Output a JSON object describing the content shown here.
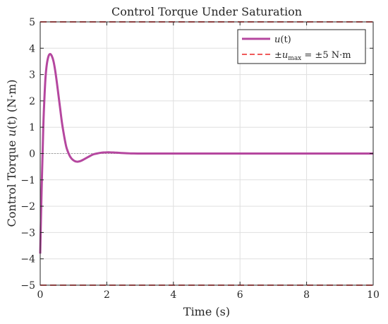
{
  "chart_data": {
    "type": "line",
    "title": "Control Torque Under Saturation",
    "xlabel": "Time (s)",
    "ylabel": {
      "prefix": "Control Torque ",
      "var": "u",
      "args": "(t)",
      "suffix": " (N·m)"
    },
    "xlim": [
      0,
      10
    ],
    "ylim": [
      -5,
      5
    ],
    "xticks": [
      0,
      2,
      4,
      6,
      8,
      10
    ],
    "yticks": [
      -5,
      -4,
      -3,
      -2,
      -1,
      0,
      1,
      2,
      3,
      4,
      5
    ],
    "ytick_labels": [
      "−5",
      "−4",
      "−3",
      "−2",
      "−1",
      "0",
      "1",
      "2",
      "3",
      "4",
      "5"
    ],
    "grid": true,
    "legend_position": "top-right",
    "colors": {
      "signal": "#b5479f",
      "limit": "#f05a5a",
      "zero": "#8c8c8c"
    },
    "series": [
      {
        "name": "u(t)",
        "legend": {
          "var": "u",
          "args": "(t)"
        },
        "x": [
          0,
          0.02,
          0.05,
          0.08,
          0.1,
          0.13,
          0.16,
          0.2,
          0.25,
          0.3,
          0.35,
          0.4,
          0.45,
          0.5,
          0.55,
          0.6,
          0.65,
          0.7,
          0.75,
          0.8,
          0.9,
          1.0,
          1.1,
          1.2,
          1.3,
          1.4,
          1.5,
          1.6,
          1.7,
          1.8,
          1.9,
          2.0,
          2.1,
          2.2,
          2.3,
          2.4,
          2.5,
          2.6,
          2.7,
          2.8,
          3.0,
          3.2,
          3.5,
          4.0,
          5.0,
          6.0,
          7.0,
          8.0,
          9.0,
          10.0
        ],
        "y": [
          -3.8,
          -2.6,
          -1.0,
          0.4,
          1.3,
          2.2,
          2.9,
          3.4,
          3.7,
          3.78,
          3.7,
          3.5,
          3.15,
          2.7,
          2.2,
          1.7,
          1.2,
          0.8,
          0.45,
          0.18,
          -0.12,
          -0.26,
          -0.31,
          -0.29,
          -0.23,
          -0.16,
          -0.09,
          -0.03,
          0.0,
          0.025,
          0.04,
          0.045,
          0.045,
          0.04,
          0.032,
          0.024,
          0.016,
          0.01,
          0.005,
          0.002,
          0.0,
          0.0,
          0.0,
          0.0,
          0.0,
          0.0,
          0.0,
          0.0,
          0.0,
          0.0
        ]
      },
      {
        "name": "±u_max = ±5 N·m",
        "legend": {
          "prefix": "±",
          "var": "u",
          "sub": "max",
          "suffix": " = ±5 N·m"
        },
        "values": [
          5,
          -5
        ]
      }
    ]
  }
}
